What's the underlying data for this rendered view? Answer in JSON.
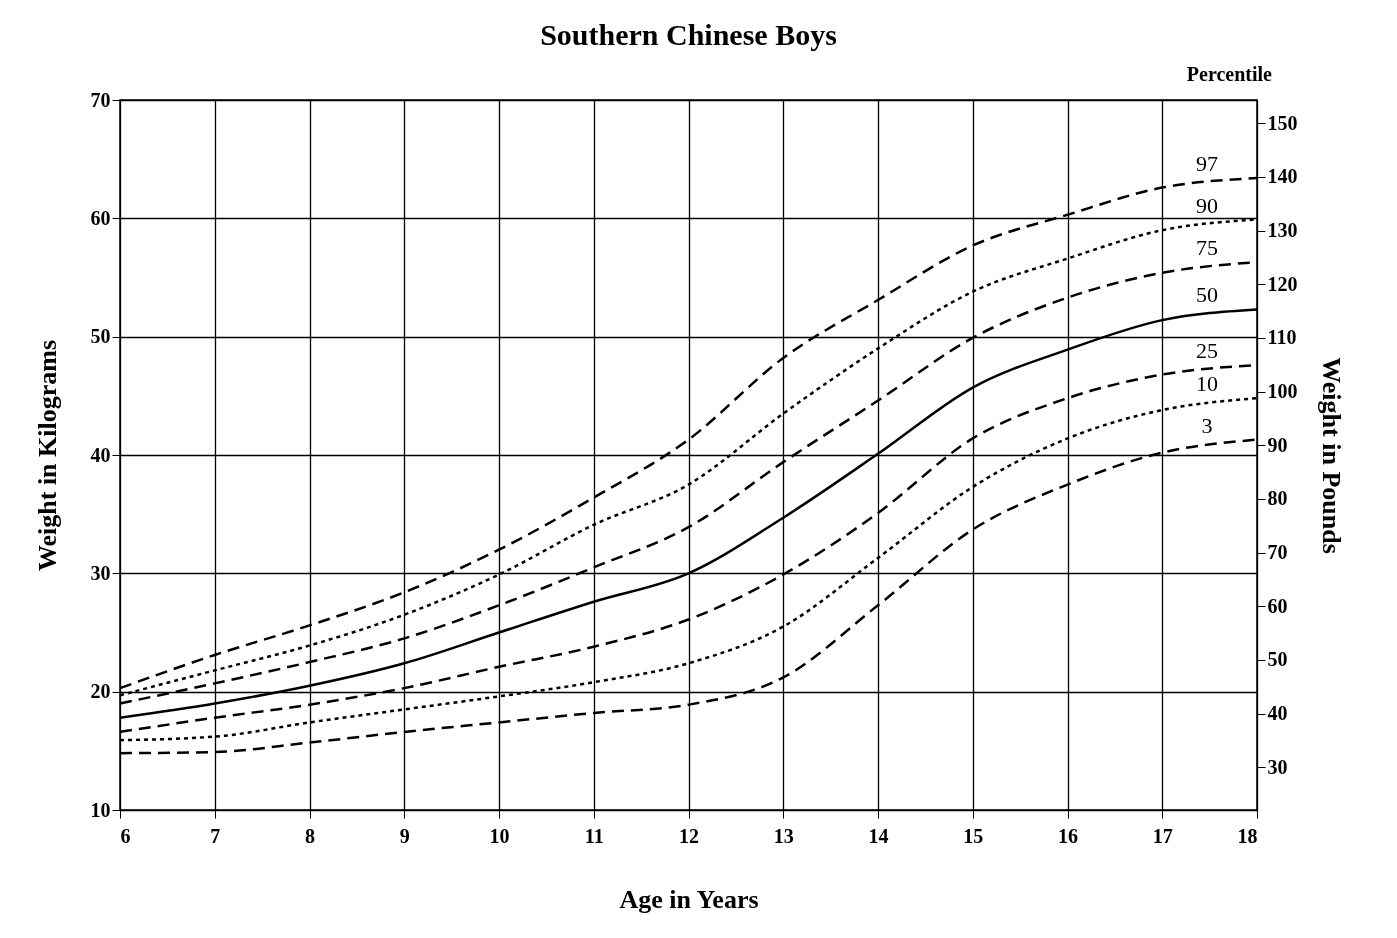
{
  "chart_data": {
    "type": "line",
    "title": "Southern Chinese Boys",
    "xlabel": "Age in Years",
    "ylabel": "Weight in Kilograms",
    "y2label": "Weight in Pounds",
    "annotations": [
      "Percentile"
    ],
    "x": [
      6,
      7,
      8,
      9,
      10,
      11,
      12,
      13,
      14,
      15,
      16,
      17,
      18
    ],
    "xlim": [
      6,
      18
    ],
    "xticks": [
      6,
      7,
      8,
      9,
      10,
      11,
      12,
      13,
      14,
      15,
      16,
      17,
      18
    ],
    "ylim": [
      10,
      70
    ],
    "yticks": [
      10,
      20,
      30,
      40,
      50,
      60,
      70
    ],
    "y2lim": [
      22.05,
      154.32
    ],
    "y2ticks": [
      30,
      40,
      50,
      60,
      70,
      80,
      90,
      100,
      110,
      120,
      130,
      140,
      150
    ],
    "grid": true,
    "legend": false,
    "series": [
      {
        "name": "97",
        "color": "#000000",
        "line_style": "dashed",
        "values": [
          20.3,
          23.1,
          25.6,
          28.4,
          32.0,
          36.4,
          41.3,
          48.2,
          53.1,
          57.7,
          60.3,
          62.6,
          63.4
        ]
      },
      {
        "name": "90",
        "color": "#000000",
        "line_style": "dotted",
        "values": [
          19.7,
          21.8,
          23.9,
          26.5,
          29.9,
          34.1,
          37.5,
          43.5,
          49.0,
          53.8,
          56.6,
          59.0,
          59.9
        ]
      },
      {
        "name": "75",
        "color": "#000000",
        "line_style": "dashed",
        "values": [
          19.0,
          20.7,
          22.5,
          24.5,
          27.3,
          30.5,
          33.9,
          39.4,
          44.6,
          49.9,
          53.3,
          55.4,
          56.3
        ]
      },
      {
        "name": "50",
        "color": "#000000",
        "line_style": "solid",
        "values": [
          17.8,
          19.0,
          20.5,
          22.4,
          25.0,
          27.6,
          30.0,
          34.7,
          40.1,
          45.7,
          48.9,
          51.4,
          52.3
        ]
      },
      {
        "name": "25",
        "color": "#000000",
        "line_style": "dashed",
        "values": [
          16.6,
          17.8,
          18.9,
          20.3,
          22.1,
          23.8,
          26.1,
          29.9,
          35.1,
          41.4,
          44.8,
          46.8,
          47.6
        ]
      },
      {
        "name": "10",
        "color": "#000000",
        "line_style": "dotted",
        "values": [
          15.9,
          16.2,
          17.4,
          18.5,
          19.6,
          20.8,
          22.4,
          25.5,
          31.3,
          37.3,
          41.4,
          43.8,
          44.8
        ]
      },
      {
        "name": "3",
        "color": "#000000",
        "line_style": "dashed",
        "values": [
          14.8,
          14.9,
          15.7,
          16.6,
          17.4,
          18.2,
          18.9,
          21.2,
          27.3,
          33.7,
          37.5,
          40.2,
          41.3
        ]
      }
    ]
  }
}
